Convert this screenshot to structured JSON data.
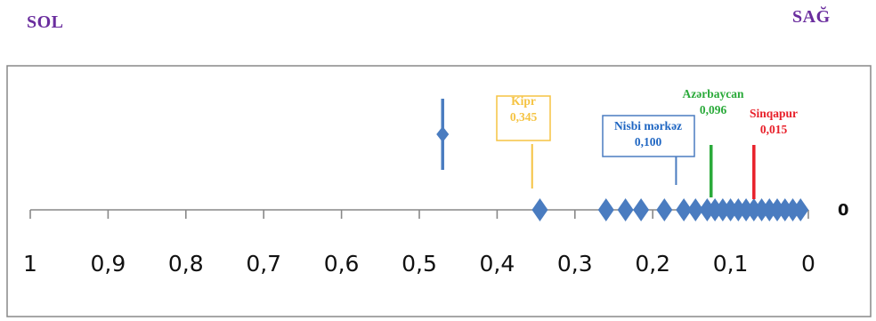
{
  "labels": {
    "left": "SOL",
    "right": "SAĞ",
    "zero_marker": "0"
  },
  "colors": {
    "side_labels": "#6a2d9e",
    "markers": "#4a7cc0",
    "axis": "#888888",
    "frame": "#888888"
  },
  "chart_data": {
    "type": "scatter",
    "title": "",
    "xlabel": "",
    "ylabel": "",
    "x_reversed": true,
    "xlim": [
      0,
      1
    ],
    "x_ticks": [
      "1",
      "0,9",
      "0,8",
      "0,7",
      "0,6",
      "0,5",
      "0,4",
      "0,3",
      "0,2",
      "0,1",
      "0"
    ],
    "grid": false,
    "legend": "none",
    "points": [
      {
        "x": 0.47,
        "y": 1
      },
      {
        "x": 0.345,
        "y": 0
      },
      {
        "x": 0.26,
        "y": 0
      },
      {
        "x": 0.235,
        "y": 0
      },
      {
        "x": 0.215,
        "y": 0
      },
      {
        "x": 0.185,
        "y": 0
      },
      {
        "x": 0.16,
        "y": 0
      },
      {
        "x": 0.145,
        "y": 0
      },
      {
        "x": 0.13,
        "y": 0
      },
      {
        "x": 0.12,
        "y": 0
      },
      {
        "x": 0.11,
        "y": 0
      },
      {
        "x": 0.1,
        "y": 0
      },
      {
        "x": 0.09,
        "y": 0
      },
      {
        "x": 0.08,
        "y": 0
      },
      {
        "x": 0.07,
        "y": 0
      },
      {
        "x": 0.06,
        "y": 0
      },
      {
        "x": 0.05,
        "y": 0
      },
      {
        "x": 0.04,
        "y": 0
      },
      {
        "x": 0.03,
        "y": 0
      },
      {
        "x": 0.02,
        "y": 0
      },
      {
        "x": 0.01,
        "y": 0
      }
    ],
    "annotations": [
      {
        "id": "kipr",
        "name": "Kipr",
        "value": "0,345",
        "color": "#f5c342",
        "box": true,
        "box_color": "#f5c342",
        "line_x": 0.355
      },
      {
        "id": "nisbi",
        "name": "Nisbi mərkəz",
        "value": "0,100",
        "color": "#1f66c2",
        "box": true,
        "box_color": "#4a7cc0",
        "line_x": 0.17
      },
      {
        "id": "azerbaycan",
        "name": "Azərbaycan",
        "value": "0,096",
        "color": "#2aaa3a",
        "box": false,
        "line_x": 0.125
      },
      {
        "id": "sinqapur",
        "name": "Sinqapur",
        "value": "0,015",
        "color": "#e8202a",
        "box": false,
        "line_x": 0.07
      }
    ]
  }
}
